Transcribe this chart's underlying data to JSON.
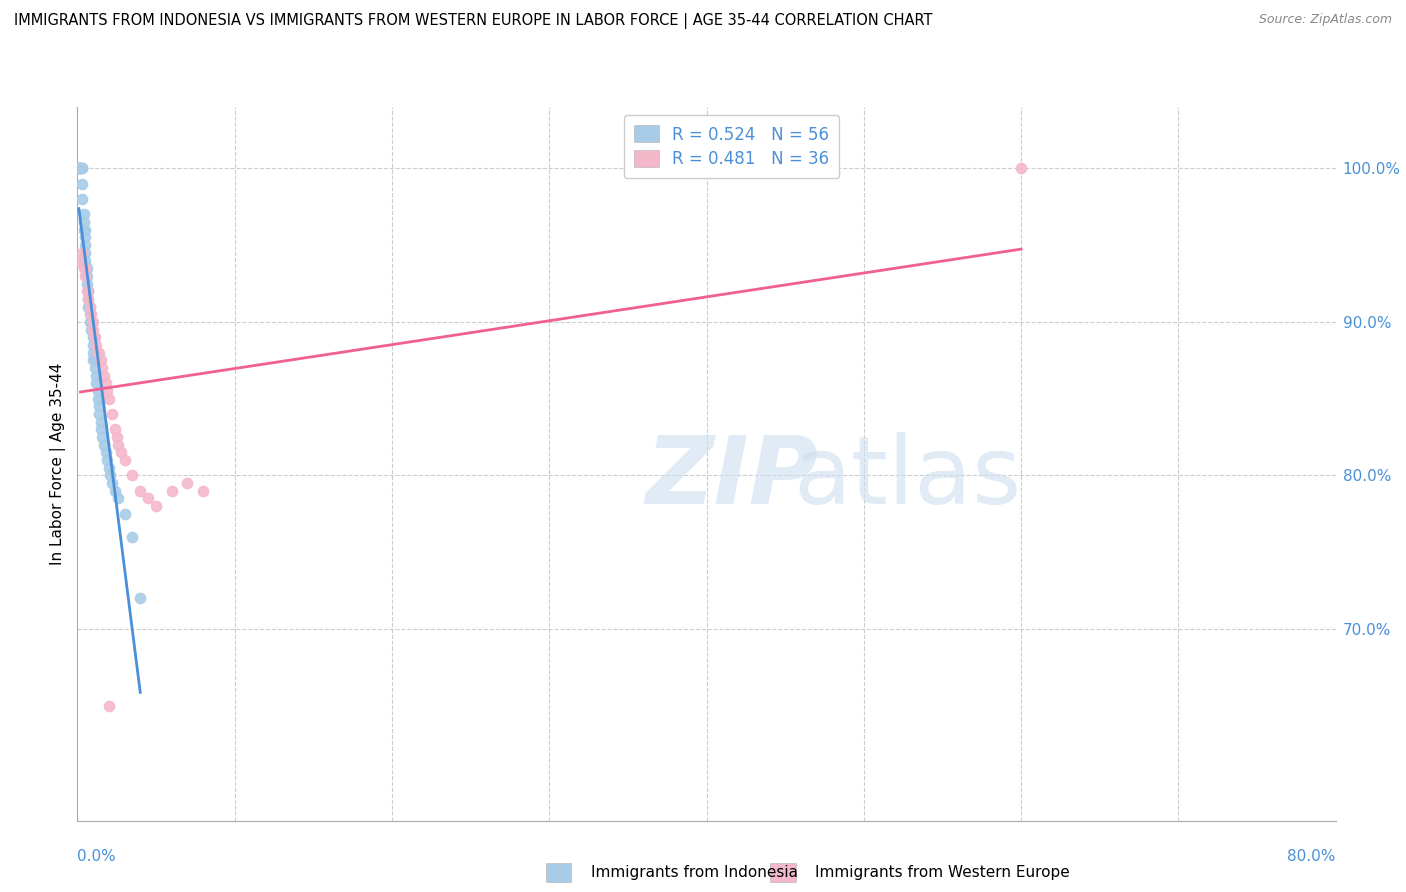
{
  "title": "IMMIGRANTS FROM INDONESIA VS IMMIGRANTS FROM WESTERN EUROPE IN LABOR FORCE | AGE 35-44 CORRELATION CHART",
  "source": "Source: ZipAtlas.com",
  "ylabel": "In Labor Force | Age 35-44",
  "legend1_text": "R = 0.524   N = 56",
  "legend2_text": "R = 0.481   N = 36",
  "legend_color": "#4a90d9",
  "color_indonesia": "#a8cce8",
  "color_western_europe": "#f4b8ca",
  "line_color_indonesia": "#4a90d9",
  "line_color_western_europe": "#f06090",
  "indonesia_x": [
    0.001,
    0.001,
    0.002,
    0.002,
    0.002,
    0.003,
    0.003,
    0.003,
    0.003,
    0.004,
    0.004,
    0.004,
    0.005,
    0.005,
    0.005,
    0.005,
    0.005,
    0.005,
    0.006,
    0.006,
    0.006,
    0.007,
    0.007,
    0.007,
    0.007,
    0.008,
    0.008,
    0.008,
    0.009,
    0.009,
    0.01,
    0.01,
    0.01,
    0.01,
    0.011,
    0.011,
    0.012,
    0.012,
    0.013,
    0.013,
    0.014,
    0.014,
    0.015,
    0.015,
    0.016,
    0.017,
    0.018,
    0.019,
    0.02,
    0.021,
    0.022,
    0.024,
    0.026,
    0.03,
    0.035,
    0.04
  ],
  "indonesia_y": [
    1.0,
    1.0,
    1.0,
    1.0,
    1.0,
    1.0,
    1.0,
    0.99,
    0.98,
    0.97,
    0.965,
    0.96,
    0.96,
    0.955,
    0.95,
    0.945,
    0.94,
    0.935,
    0.935,
    0.93,
    0.925,
    0.92,
    0.92,
    0.915,
    0.91,
    0.91,
    0.905,
    0.9,
    0.9,
    0.895,
    0.89,
    0.885,
    0.88,
    0.875,
    0.875,
    0.87,
    0.865,
    0.86,
    0.855,
    0.85,
    0.845,
    0.84,
    0.835,
    0.83,
    0.825,
    0.82,
    0.815,
    0.81,
    0.805,
    0.8,
    0.795,
    0.79,
    0.785,
    0.775,
    0.76,
    0.72
  ],
  "western_europe_x": [
    0.002,
    0.003,
    0.004,
    0.005,
    0.005,
    0.006,
    0.007,
    0.008,
    0.009,
    0.01,
    0.01,
    0.011,
    0.012,
    0.013,
    0.014,
    0.015,
    0.016,
    0.017,
    0.018,
    0.019,
    0.02,
    0.022,
    0.024,
    0.025,
    0.026,
    0.028,
    0.03,
    0.035,
    0.04,
    0.045,
    0.05,
    0.06,
    0.07,
    0.08,
    0.6,
    0.02
  ],
  "western_europe_y": [
    0.94,
    0.945,
    0.935,
    0.93,
    0.935,
    0.92,
    0.915,
    0.91,
    0.905,
    0.9,
    0.895,
    0.89,
    0.885,
    0.88,
    0.88,
    0.875,
    0.87,
    0.865,
    0.86,
    0.855,
    0.85,
    0.84,
    0.83,
    0.825,
    0.82,
    0.815,
    0.81,
    0.8,
    0.79,
    0.785,
    0.78,
    0.79,
    0.795,
    0.79,
    1.0,
    0.65
  ],
  "xlim": [
    0.0,
    0.8
  ],
  "ylim": [
    0.575,
    1.04
  ],
  "yticks": [
    0.7,
    0.8,
    0.9,
    1.0
  ],
  "ytick_labels": [
    "70.0%",
    "80.0%",
    "90.0%",
    "100.0%"
  ],
  "xtick_left_label": "0.0%",
  "xtick_right_label": "80.0%",
  "background_color": "#ffffff",
  "grid_color": "#cccccc"
}
